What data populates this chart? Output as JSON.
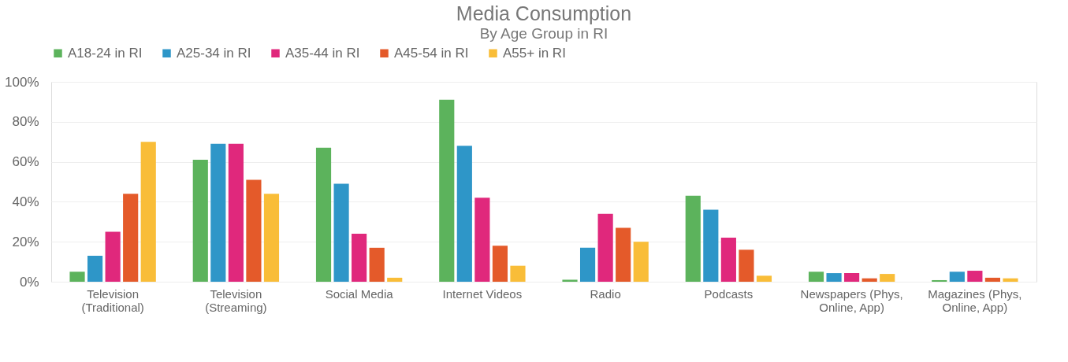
{
  "chart_data": {
    "type": "bar",
    "title": "Media Consumption",
    "subtitle": "By Age Group in RI",
    "categories": [
      "Television\n(Traditional)",
      "Television\n(Streaming)",
      "Social Media",
      "Internet Videos",
      "Radio",
      "Podcasts",
      "Newspapers (Phys,\nOnline, App)",
      "Magazines (Phys,\nOnline, App)"
    ],
    "series": [
      {
        "name": "A18-24 in RI",
        "color": "#5cb35c",
        "values": [
          5,
          61,
          67,
          91,
          1,
          43,
          5,
          0.8
        ]
      },
      {
        "name": "A25-34 in RI",
        "color": "#2e96c8",
        "values": [
          13,
          69,
          49,
          68,
          17,
          36,
          4.3,
          5
        ]
      },
      {
        "name": "A35-44 in RI",
        "color": "#e0287c",
        "values": [
          25,
          69,
          24,
          42,
          34,
          22,
          4.3,
          5.5
        ]
      },
      {
        "name": "A45-54 in RI",
        "color": "#e45a2a",
        "values": [
          44,
          51,
          17,
          18,
          27,
          16,
          1.7,
          2
        ]
      },
      {
        "name": "A55+ in RI",
        "color": "#f9bd38",
        "values": [
          70,
          44,
          2,
          8,
          20,
          3,
          3.9,
          1.7
        ]
      }
    ],
    "ylim": [
      0,
      100
    ],
    "yticks": [
      {
        "value": 0,
        "label": "0%"
      },
      {
        "value": 20,
        "label": "20%"
      },
      {
        "value": 40,
        "label": "40%"
      },
      {
        "value": 60,
        "label": "60%"
      },
      {
        "value": 80,
        "label": "80%"
      },
      {
        "value": 100,
        "label": "100%"
      }
    ],
    "grid": "y",
    "legend": "top"
  }
}
